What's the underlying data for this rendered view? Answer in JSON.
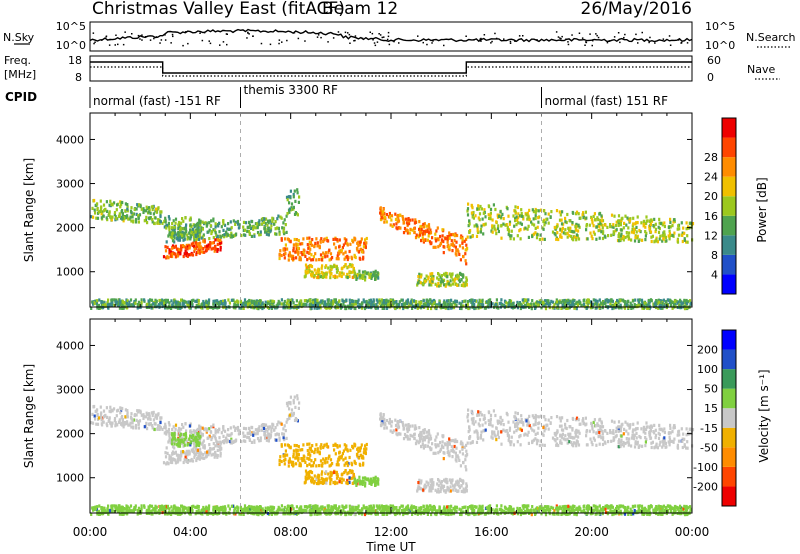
{
  "header": {
    "title": "Christmas Valley East (fitACF)",
    "beam": "Beam 12",
    "date": "26/May/2016"
  },
  "sky_panel": {
    "left_label": "N.Sky",
    "right_label": "N.Search",
    "left_ticks": [
      "10^5",
      "10^0"
    ],
    "right_ticks": [
      "10^5",
      "10^0"
    ]
  },
  "freq_panel": {
    "left_label_1": "Freq.",
    "left_label_2": "[MHz]",
    "right_label": "Nave",
    "left_ticks": [
      "18",
      "8"
    ],
    "right_ticks": [
      "60",
      "0"
    ]
  },
  "cpid": {
    "label": "CPID",
    "segments": [
      {
        "start_h": 0,
        "end_h": 6,
        "text": "normal (fast) -151 RF"
      },
      {
        "start_h": 6,
        "end_h": 18,
        "text": "themis 3300 RF"
      },
      {
        "start_h": 18,
        "end_h": 24,
        "text": "normal (fast) 151 RF"
      }
    ]
  },
  "x_axis": {
    "label": "Time UT",
    "tick_labels": [
      "00:00",
      "04:00",
      "08:00",
      "12:00",
      "16:00",
      "20:00",
      "00:00"
    ],
    "range_hours": [
      0,
      24
    ]
  },
  "power_panel": {
    "ylabel": "Slant Range [km]",
    "y_ticks": [
      "1000",
      "2000",
      "3000",
      "4000"
    ],
    "colorbar_label": "Power [dB]",
    "colorbar_ticks": [
      "4",
      "8",
      "12",
      "16",
      "20",
      "24",
      "28"
    ],
    "colors": [
      "#0000ff",
      "#2050c8",
      "#3a8a8a",
      "#4fa34f",
      "#9cc81e",
      "#f0c000",
      "#ff8c00",
      "#ff4500",
      "#ee0000"
    ]
  },
  "velocity_panel": {
    "ylabel": "Slant Range [km]",
    "y_ticks": [
      "1000",
      "2000",
      "3000",
      "4000"
    ],
    "colorbar_label": "Velocity [m s⁻¹]",
    "colorbar_ticks": [
      "-200",
      "-100",
      "-50",
      "-15",
      "15",
      "50",
      "100",
      "200"
    ],
    "colors": [
      "#ee0000",
      "#ff4500",
      "#ff8c00",
      "#f0b000",
      "#c8c8c8",
      "#80d040",
      "#3a9a5a",
      "#2050c8",
      "#0000ff"
    ]
  },
  "chart_data": {
    "type": "heatmap",
    "x_unit": "hours UT",
    "y_unit": "km",
    "xlim": [
      0,
      24
    ],
    "ylim": [
      200,
      4600
    ],
    "scatter_regions": [
      {
        "x": [
          0,
          2.9
        ],
        "r_lo": [
          2250,
          2100
        ],
        "r_hi": [
          2700,
          2500
        ],
        "power": 14,
        "velocity": 0
      },
      {
        "x": [
          2.9,
          6
        ],
        "r_lo": [
          1700,
          1800
        ],
        "r_hi": [
          2300,
          2200
        ],
        "power": 13,
        "velocity": 0
      },
      {
        "x": [
          2.9,
          5.2
        ],
        "r_lo": [
          1300,
          1500
        ],
        "r_hi": [
          1600,
          1800
        ],
        "power": 26,
        "velocity": 0
      },
      {
        "x": [
          3.2,
          4.4
        ],
        "r_lo": [
          1750,
          1750
        ],
        "r_hi": [
          2050,
          2050
        ],
        "power": 13,
        "velocity": 40
      },
      {
        "x": [
          6,
          7.8
        ],
        "r_lo": [
          1800,
          1900
        ],
        "r_hi": [
          2150,
          2350
        ],
        "power": 13,
        "velocity": 0
      },
      {
        "x": [
          7.5,
          11
        ],
        "r_lo": [
          1300,
          1300
        ],
        "r_hi": [
          1800,
          1800
        ],
        "power": 24,
        "velocity": -40
      },
      {
        "x": [
          7.8,
          8.3
        ],
        "r_lo": [
          2300,
          2300
        ],
        "r_hi": [
          2900,
          2900
        ],
        "power": 12,
        "velocity": 0
      },
      {
        "x": [
          8.5,
          10.5
        ],
        "r_lo": [
          900,
          900
        ],
        "r_hi": [
          1200,
          1200
        ],
        "power": 18,
        "velocity": -40
      },
      {
        "x": [
          10.5,
          11.5
        ],
        "r_lo": [
          850,
          850
        ],
        "r_hi": [
          1050,
          1050
        ],
        "power": 14,
        "velocity": 40
      },
      {
        "x": [
          11.5,
          15
        ],
        "r_lo": [
          2200,
          1200
        ],
        "r_hi": [
          2500,
          1800
        ],
        "power": 24,
        "velocity": 0
      },
      {
        "x": [
          13,
          15
        ],
        "r_lo": [
          700,
          700
        ],
        "r_hi": [
          1000,
          1000
        ],
        "power": 16,
        "velocity": 0
      },
      {
        "x": [
          15,
          24
        ],
        "r_lo": [
          1800,
          1700
        ],
        "r_hi": [
          2600,
          2200
        ],
        "power": 16,
        "velocity": 0
      },
      {
        "x": [
          0,
          24
        ],
        "r_lo": [
          200,
          200
        ],
        "r_hi": [
          400,
          400
        ],
        "power": 12,
        "velocity": 30
      }
    ]
  }
}
